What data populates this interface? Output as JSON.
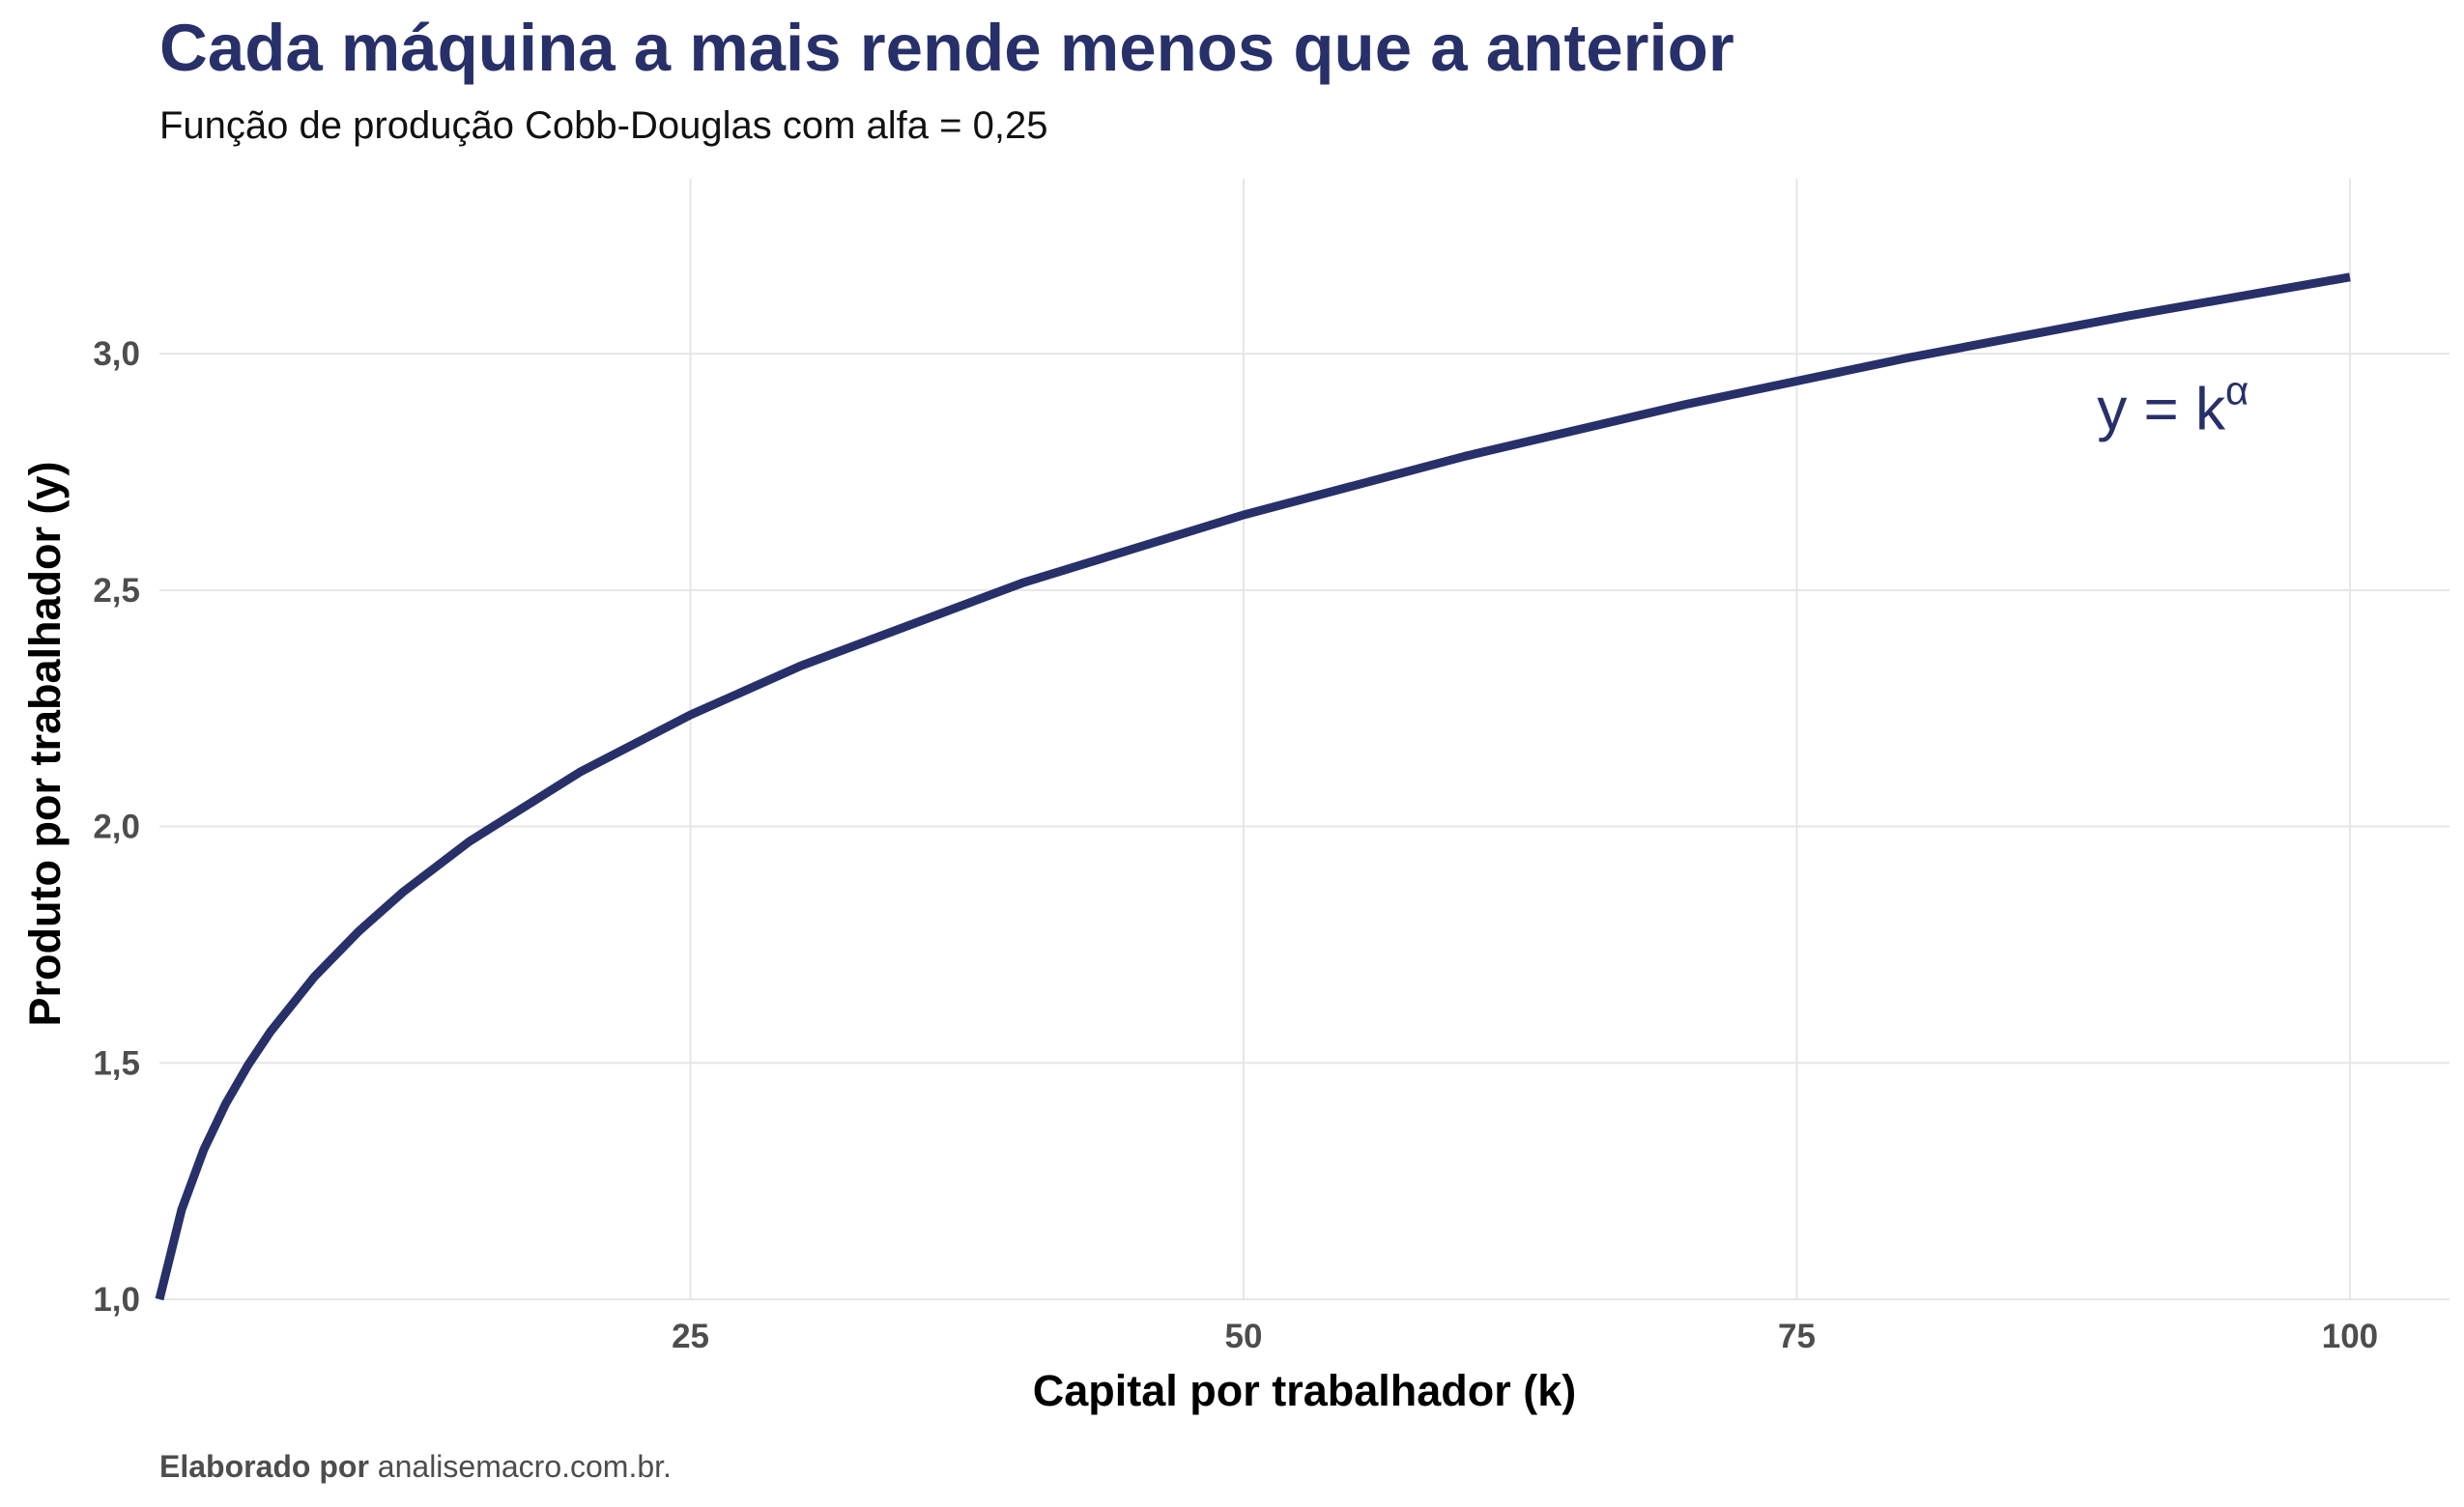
{
  "chart_data": {
    "type": "line",
    "title": "Cada máquina a mais rende menos que a anterior",
    "subtitle": "Função de produção Cobb-Douglas com alfa = 0,25",
    "xlabel": "Capital por trabalhador (k)",
    "ylabel": "Produto por trabalhador (y)",
    "caption_bold": "Elaborado por",
    "caption_text": "analisemacro.com.br.",
    "xlim": [
      1,
      104.5
    ],
    "ylim": [
      1.0,
      3.37
    ],
    "x_ticks": [
      25,
      50,
      75,
      100
    ],
    "x_tick_labels": [
      "25",
      "50",
      "75",
      "100"
    ],
    "y_ticks": [
      1.0,
      1.5,
      2.0,
      2.5,
      3.0
    ],
    "y_tick_labels": [
      "1,0",
      "1,5",
      "2,0",
      "2,5",
      "3,0"
    ],
    "grid": true,
    "alpha": 0.25,
    "x": [
      1,
      2,
      3,
      4,
      5,
      6,
      8,
      10,
      12,
      15,
      20,
      25,
      30,
      40,
      50,
      60,
      70,
      80,
      90,
      100
    ],
    "y": [
      1.0,
      1.189,
      1.316,
      1.414,
      1.495,
      1.565,
      1.682,
      1.778,
      1.861,
      1.968,
      2.115,
      2.236,
      2.34,
      2.515,
      2.659,
      2.783,
      2.893,
      2.991,
      3.08,
      3.162
    ],
    "annotation": {
      "text": "y = k",
      "superscript": "α",
      "x": 92,
      "y": 2.84
    },
    "colors": {
      "line": "#28306a",
      "title": "#28306a",
      "grid": "#e6e6e6"
    }
  }
}
